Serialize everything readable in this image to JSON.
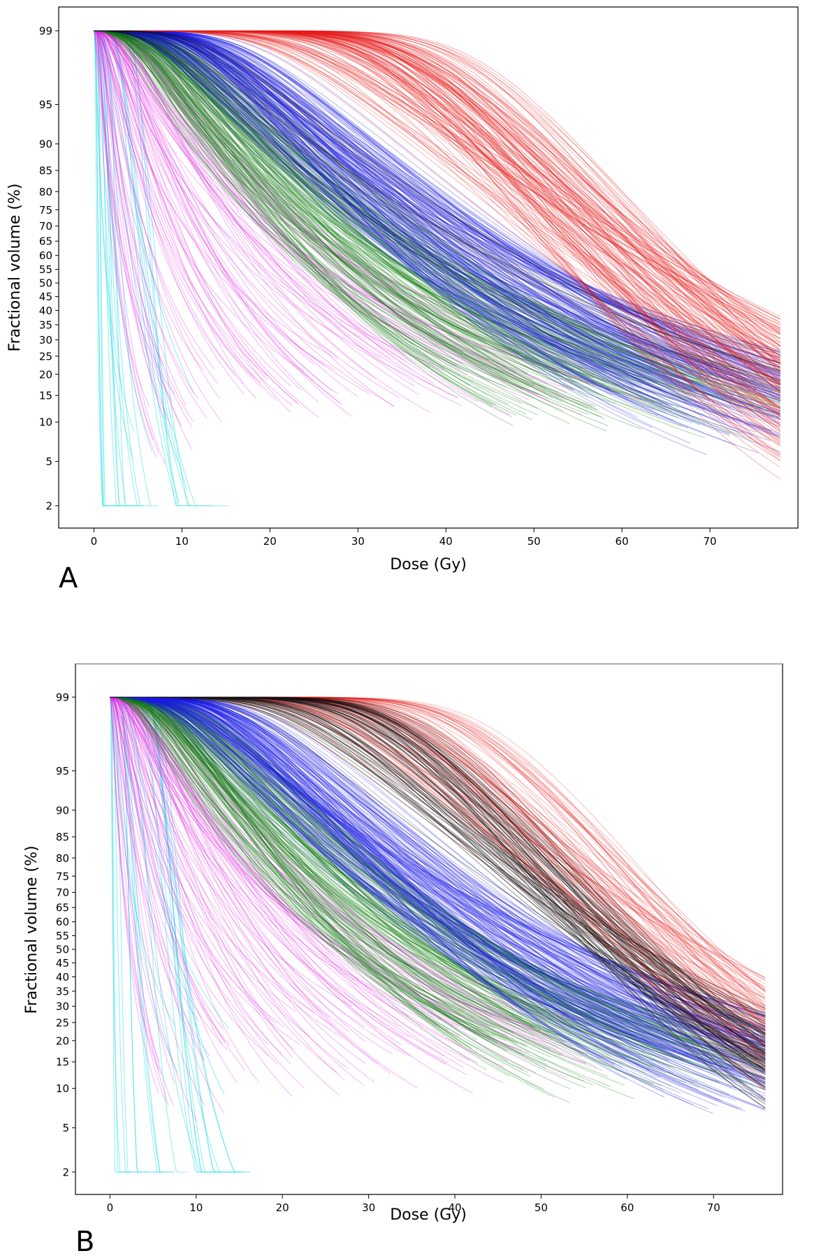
{
  "panels": [
    {
      "letter": "A"
    },
    {
      "letter": "B"
    }
  ],
  "chart_data": [
    {
      "type": "line",
      "chart_kind": "dose-volume histogram",
      "panel": "A",
      "xlabel": "Dose (Gy)",
      "ylabel": "Fractional volume (%)",
      "xlim": [
        -4,
        80
      ],
      "y_ticks": [
        2,
        5,
        10,
        15,
        20,
        25,
        30,
        35,
        40,
        45,
        50,
        55,
        60,
        65,
        70,
        75,
        80,
        85,
        90,
        95,
        99
      ],
      "x_ticks": [
        0,
        10,
        20,
        30,
        40,
        50,
        60,
        70
      ],
      "grid": false,
      "legend": "none",
      "series": [
        {
          "name": "cyan",
          "color": "#00d8e0",
          "count": 26,
          "d50_range": [
            0.1,
            9
          ],
          "steep": [
            0.8,
            6
          ],
          "alpha": 0.45
        },
        {
          "name": "magenta",
          "color": "#e020e0",
          "count": 110,
          "d50_range": [
            2,
            35
          ],
          "steep": [
            0.9,
            1.6
          ],
          "alpha": 0.32
        },
        {
          "name": "green",
          "color": "#0a7a0a",
          "count": 190,
          "d50_range": [
            26,
            47
          ],
          "steep": [
            1.1,
            1.8
          ],
          "alpha": 0.33
        },
        {
          "name": "blue",
          "color": "#1a1ae6",
          "count": 190,
          "d50_range": [
            38,
            56
          ],
          "steep": [
            1.3,
            2.2
          ],
          "alpha": 0.33
        },
        {
          "name": "red",
          "color": "#e61a1a",
          "count": 150,
          "d50_range": [
            55,
            71
          ],
          "steep": [
            2.0,
            4.5
          ],
          "alpha": 0.33
        },
        {
          "name": "black",
          "color": "#111111",
          "count": 25,
          "d50_range": [
            40,
            55
          ],
          "steep": [
            1.2,
            1.9
          ],
          "alpha": 0.28
        }
      ]
    },
    {
      "type": "line",
      "chart_kind": "dose-volume histogram",
      "panel": "B",
      "xlabel": "Dose (Gy)",
      "ylabel": "Fractional volume (%)",
      "xlim": [
        -4,
        78
      ],
      "y_ticks": [
        2,
        5,
        10,
        15,
        20,
        25,
        30,
        35,
        40,
        45,
        50,
        55,
        60,
        65,
        70,
        75,
        80,
        85,
        90,
        95,
        99
      ],
      "x_ticks": [
        0,
        10,
        20,
        30,
        40,
        50,
        60,
        70
      ],
      "grid": false,
      "legend": "none",
      "series": [
        {
          "name": "cyan",
          "color": "#00d8e0",
          "count": 26,
          "d50_range": [
            0.1,
            9
          ],
          "steep": [
            0.8,
            6
          ],
          "alpha": 0.45
        },
        {
          "name": "magenta",
          "color": "#e020e0",
          "count": 110,
          "d50_range": [
            2,
            35
          ],
          "steep": [
            0.9,
            1.6
          ],
          "alpha": 0.32
        },
        {
          "name": "green",
          "color": "#0a7a0a",
          "count": 190,
          "d50_range": [
            26,
            47
          ],
          "steep": [
            1.1,
            1.8
          ],
          "alpha": 0.33
        },
        {
          "name": "blue",
          "color": "#1a1ae6",
          "count": 190,
          "d50_range": [
            38,
            56
          ],
          "steep": [
            1.3,
            2.2
          ],
          "alpha": 0.33
        },
        {
          "name": "red",
          "color": "#e61a1a",
          "count": 110,
          "d50_range": [
            58,
            71
          ],
          "steep": [
            2.0,
            4.5
          ],
          "alpha": 0.28
        },
        {
          "name": "black",
          "color": "#111111",
          "count": 75,
          "d50_range": [
            55,
            64
          ],
          "steep": [
            1.8,
            4.0
          ],
          "alpha": 0.45
        }
      ]
    }
  ]
}
